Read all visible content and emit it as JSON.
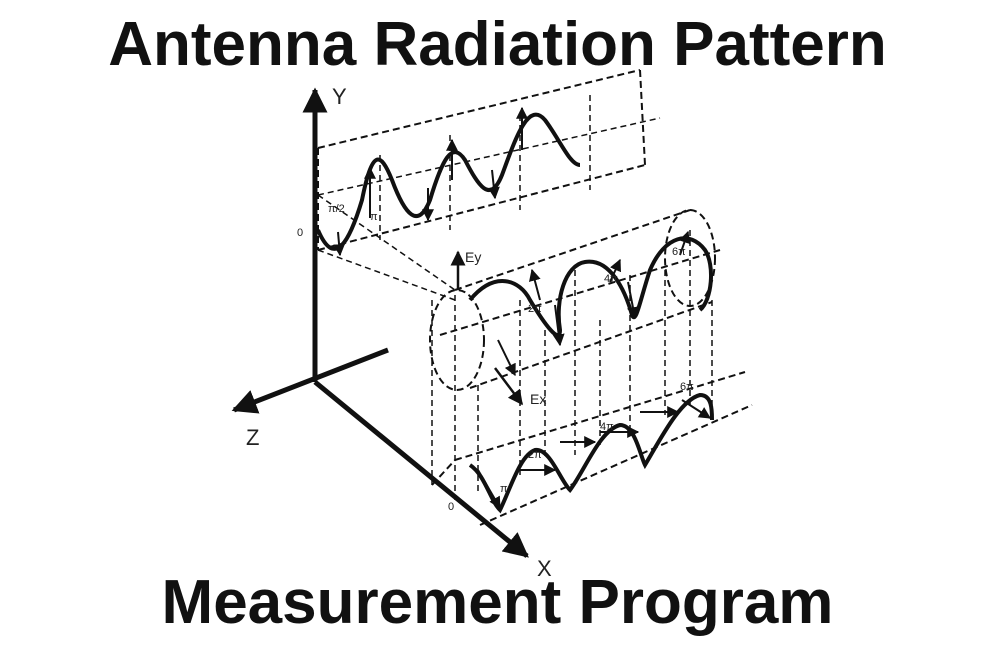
{
  "title": "Antenna Radiation Pattern",
  "subtitle": "Measurement Program",
  "axes": {
    "y": "Y",
    "z": "Z",
    "x": "X"
  },
  "field_labels": {
    "ey": "Ey",
    "ex": "Ex"
  },
  "phase_labels": {
    "top_zero": "0",
    "top_pi_half": "π/2",
    "top_pi": "π",
    "mid_2pi": "2π",
    "mid_4pi": "4π",
    "mid_6pi": "6π",
    "bot_zero": "0",
    "bot_pi": "π",
    "bot_2pi": "2π",
    "bot_4pi": "4π",
    "bot_6pi": "6π"
  }
}
